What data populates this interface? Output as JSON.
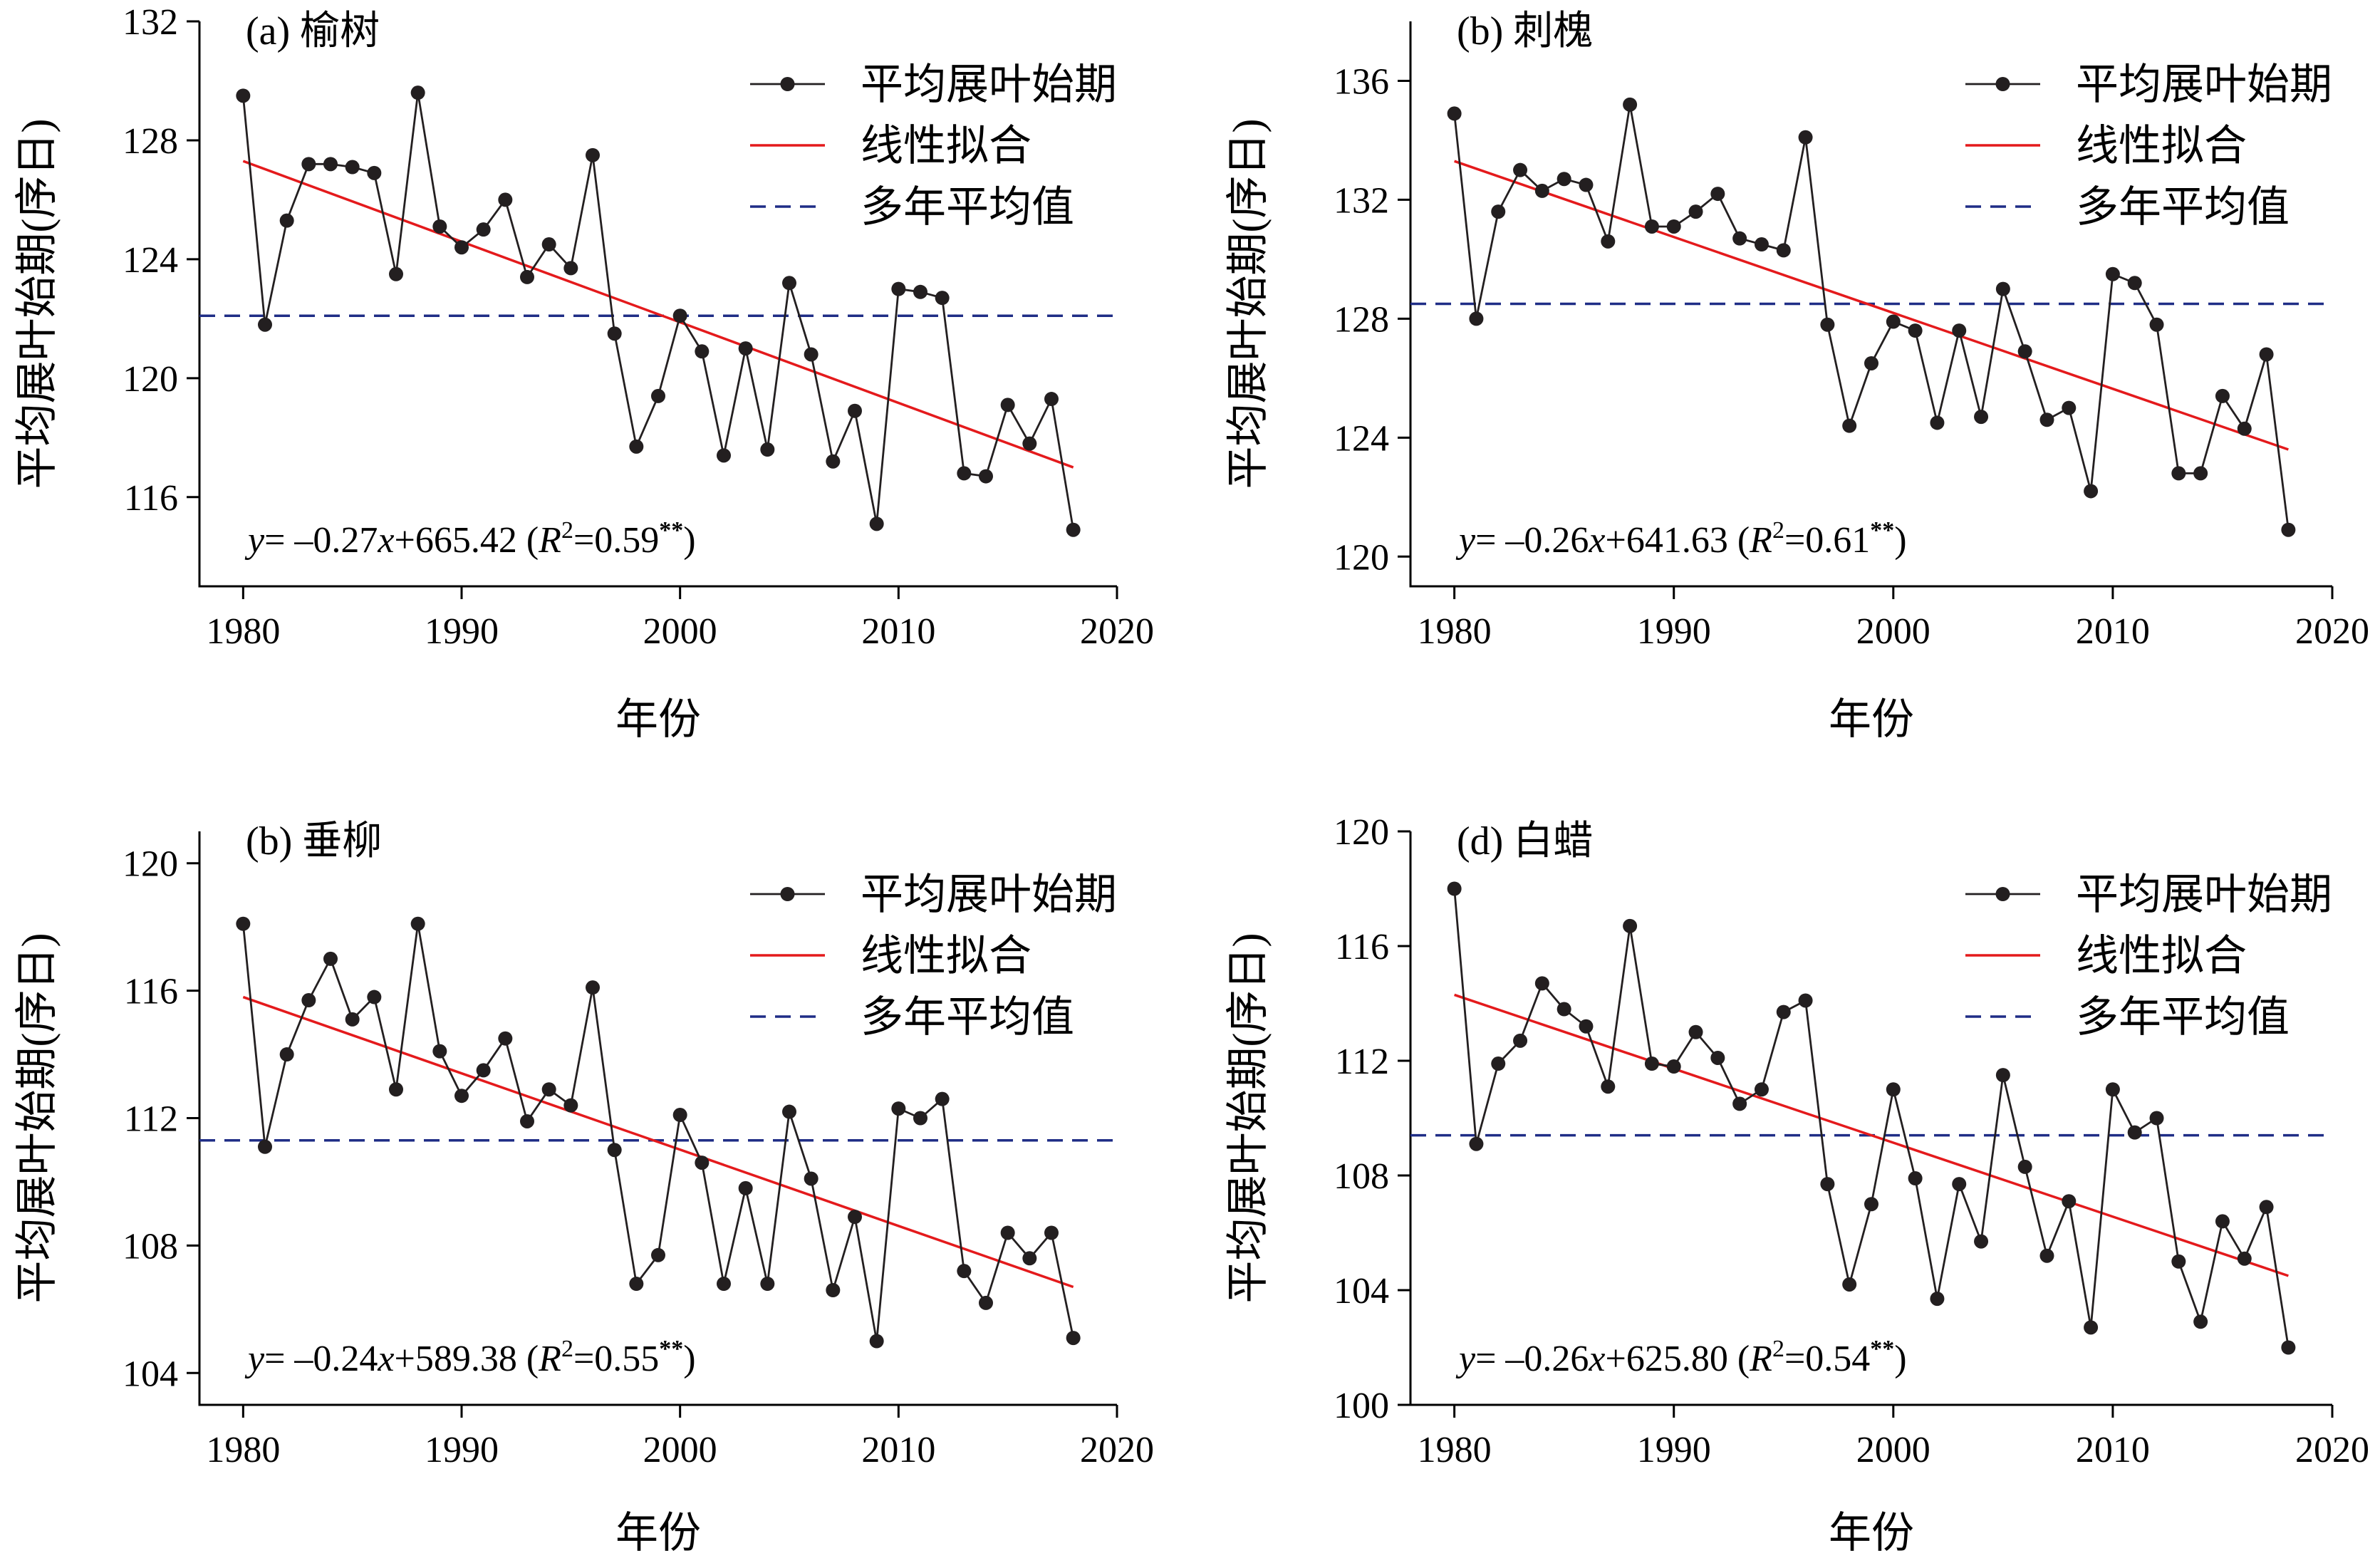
{
  "chart_data": [
    {
      "type": "line",
      "title": "(a) 榆树",
      "xlabel": "年份",
      "ylabel": "平均展叶始期(序日)",
      "xlim": [
        1978,
        2020
      ],
      "ylim": [
        113,
        132
      ],
      "xticks": [
        1980,
        1990,
        2000,
        2010,
        2020
      ],
      "yticks": [
        116,
        120,
        124,
        128,
        132
      ],
      "legend": {
        "placement": "top-right",
        "entries": [
          "平均展叶始期",
          "线性拟合",
          "多年平均值"
        ]
      },
      "x": [
        1980,
        1981,
        1982,
        1983,
        1984,
        1985,
        1986,
        1987,
        1988,
        1989,
        1990,
        1991,
        1992,
        1993,
        1994,
        1995,
        1996,
        1997,
        1998,
        1999,
        2000,
        2001,
        2002,
        2003,
        2004,
        2005,
        2006,
        2007,
        2008,
        2009,
        2010,
        2011,
        2012,
        2013,
        2014,
        2015,
        2016,
        2017,
        2018
      ],
      "series": [
        {
          "name": "平均展叶始期",
          "style": "line-marker",
          "color": "#231f20",
          "values": [
            129.5,
            121.8,
            125.3,
            127.2,
            127.2,
            127.1,
            126.9,
            123.5,
            129.6,
            125.1,
            124.4,
            125.0,
            126.0,
            123.4,
            124.5,
            123.7,
            127.5,
            121.5,
            117.7,
            119.4,
            122.1,
            120.9,
            117.4,
            121.0,
            117.6,
            123.2,
            120.8,
            117.2,
            118.9,
            115.1,
            123.0,
            122.9,
            122.7,
            116.8,
            116.7,
            119.1,
            117.8,
            119.3,
            114.9
          ]
        },
        {
          "name": "线性拟合",
          "style": "line",
          "color": "#e41a1c",
          "x": [
            1980,
            2018
          ],
          "values": [
            127.3,
            117.0
          ]
        },
        {
          "name": "多年平均值",
          "style": "dashed",
          "color": "#1f2d86",
          "x": [
            1978,
            2020
          ],
          "values": [
            122.1,
            122.1
          ]
        }
      ],
      "annotation": {
        "y": "y",
        "eq": "= –0.27",
        "x": "x",
        "rest": "+665.42 (",
        "r": "R",
        "sup": "2",
        "val": "=0.59",
        "stars": "**",
        "close": ")"
      }
    },
    {
      "type": "line",
      "title": "(b) 刺槐",
      "xlabel": "年份",
      "ylabel": "平均展叶始期(序日)",
      "xlim": [
        1978,
        2020
      ],
      "ylim": [
        119,
        138
      ],
      "xticks": [
        1980,
        1990,
        2000,
        2010,
        2020
      ],
      "yticks": [
        120,
        124,
        128,
        132,
        136
      ],
      "legend": {
        "placement": "top-right",
        "entries": [
          "平均展叶始期",
          "线性拟合",
          "多年平均值"
        ]
      },
      "x": [
        1980,
        1981,
        1982,
        1983,
        1984,
        1985,
        1986,
        1987,
        1988,
        1989,
        1990,
        1991,
        1992,
        1993,
        1994,
        1995,
        1996,
        1997,
        1998,
        1999,
        2000,
        2001,
        2002,
        2003,
        2004,
        2005,
        2006,
        2007,
        2008,
        2009,
        2010,
        2011,
        2012,
        2013,
        2014,
        2015,
        2016,
        2017,
        2018
      ],
      "series": [
        {
          "name": "平均展叶始期",
          "style": "line-marker",
          "color": "#231f20",
          "values": [
            134.9,
            128.0,
            131.6,
            133.0,
            132.3,
            132.7,
            132.5,
            130.6,
            135.2,
            131.1,
            131.1,
            131.6,
            132.2,
            130.7,
            130.5,
            130.3,
            134.1,
            127.8,
            124.4,
            126.5,
            127.9,
            127.6,
            124.5,
            127.6,
            124.7,
            129.0,
            126.9,
            124.6,
            125.0,
            122.2,
            129.5,
            129.2,
            127.8,
            122.8,
            122.8,
            125.4,
            124.3,
            126.8,
            120.9
          ]
        },
        {
          "name": "线性拟合",
          "style": "line",
          "color": "#e41a1c",
          "x": [
            1980,
            2018
          ],
          "values": [
            133.3,
            123.6
          ]
        },
        {
          "name": "多年平均值",
          "style": "dashed",
          "color": "#1f2d86",
          "x": [
            1978,
            2020
          ],
          "values": [
            128.5,
            128.5
          ]
        }
      ],
      "annotation": {
        "y": "y",
        "eq": "= –0.26",
        "x": "x",
        "rest": "+641.63 (",
        "r": "R",
        "sup": "2",
        "val": "=0.61",
        "stars": "**",
        "close": ")"
      }
    },
    {
      "type": "line",
      "title": "(b) 垂柳",
      "xlabel": "年份",
      "ylabel": "平均展叶始期(序日)",
      "xlim": [
        1978,
        2020
      ],
      "ylim": [
        103,
        121
      ],
      "xticks": [
        1980,
        1990,
        2000,
        2010,
        2020
      ],
      "yticks": [
        104,
        108,
        112,
        116,
        120
      ],
      "legend": {
        "placement": "top-right",
        "entries": [
          "平均展叶始期",
          "线性拟合",
          "多年平均值"
        ]
      },
      "x": [
        1980,
        1981,
        1982,
        1983,
        1984,
        1985,
        1986,
        1987,
        1988,
        1989,
        1990,
        1991,
        1992,
        1993,
        1994,
        1995,
        1996,
        1997,
        1998,
        1999,
        2000,
        2001,
        2002,
        2003,
        2004,
        2005,
        2006,
        2007,
        2008,
        2009,
        2010,
        2011,
        2012,
        2013,
        2014,
        2015,
        2016,
        2017,
        2018
      ],
      "series": [
        {
          "name": "平均展叶始期",
          "style": "line-marker",
          "color": "#231f20",
          "values": [
            118.1,
            111.1,
            114.0,
            115.7,
            117.0,
            115.1,
            115.8,
            112.9,
            118.1,
            114.1,
            112.7,
            113.5,
            114.5,
            111.9,
            112.9,
            112.4,
            116.1,
            111.0,
            106.8,
            107.7,
            112.1,
            110.6,
            106.8,
            109.8,
            106.8,
            112.2,
            110.1,
            106.6,
            108.9,
            105.0,
            112.3,
            112.0,
            112.6,
            107.2,
            106.2,
            108.4,
            107.6,
            108.4,
            105.1
          ]
        },
        {
          "name": "线性拟合",
          "style": "line",
          "color": "#e41a1c",
          "x": [
            1980,
            2018
          ],
          "values": [
            115.8,
            106.7
          ]
        },
        {
          "name": "多年平均值",
          "style": "dashed",
          "color": "#1f2d86",
          "x": [
            1978,
            2020
          ],
          "values": [
            111.3,
            111.3
          ]
        }
      ],
      "annotation": {
        "y": "y",
        "eq": "= –0.24",
        "x": "x",
        "rest": "+589.38 (",
        "r": "R",
        "sup": "2",
        "val": "=0.55",
        "stars": "**",
        "close": ")"
      }
    },
    {
      "type": "line",
      "title": "(d) 白蜡",
      "xlabel": "年份",
      "ylabel": "平均展叶始期(序日)",
      "xlim": [
        1978,
        2020
      ],
      "ylim": [
        100,
        120
      ],
      "xticks": [
        1980,
        1990,
        2000,
        2010,
        2020
      ],
      "yticks": [
        100,
        104,
        108,
        112,
        116,
        120
      ],
      "legend": {
        "placement": "top-right",
        "entries": [
          "平均展叶始期",
          "线性拟合",
          "多年平均值"
        ]
      },
      "x": [
        1980,
        1981,
        1982,
        1983,
        1984,
        1985,
        1986,
        1987,
        1988,
        1989,
        1990,
        1991,
        1992,
        1993,
        1994,
        1995,
        1996,
        1997,
        1998,
        1999,
        2000,
        2001,
        2002,
        2003,
        2004,
        2005,
        2006,
        2007,
        2008,
        2009,
        2010,
        2011,
        2012,
        2013,
        2014,
        2015,
        2016,
        2017,
        2018
      ],
      "series": [
        {
          "name": "平均展叶始期",
          "style": "line-marker",
          "color": "#231f20",
          "values": [
            118.0,
            109.1,
            111.9,
            112.7,
            114.7,
            113.8,
            113.2,
            111.1,
            116.7,
            111.9,
            111.8,
            113.0,
            112.1,
            110.5,
            111.0,
            113.7,
            114.1,
            107.7,
            104.2,
            107.0,
            111.0,
            107.9,
            103.7,
            107.7,
            105.7,
            111.5,
            108.3,
            105.2,
            107.1,
            102.7,
            111.0,
            109.5,
            110.0,
            105.0,
            102.9,
            106.4,
            105.1,
            106.9,
            102.0
          ]
        },
        {
          "name": "线性拟合",
          "style": "line",
          "color": "#e41a1c",
          "x": [
            1980,
            2018
          ],
          "values": [
            114.3,
            104.5
          ]
        },
        {
          "name": "多年平均值",
          "style": "dashed",
          "color": "#1f2d86",
          "x": [
            1978,
            2020
          ],
          "values": [
            109.4,
            109.4
          ]
        }
      ],
      "annotation": {
        "y": "y",
        "eq": "= –0.26",
        "x": "x",
        "rest": "+625.80 (",
        "r": "R",
        "sup": "2",
        "val": "=0.54",
        "stars": "**",
        "close": ")"
      }
    }
  ]
}
